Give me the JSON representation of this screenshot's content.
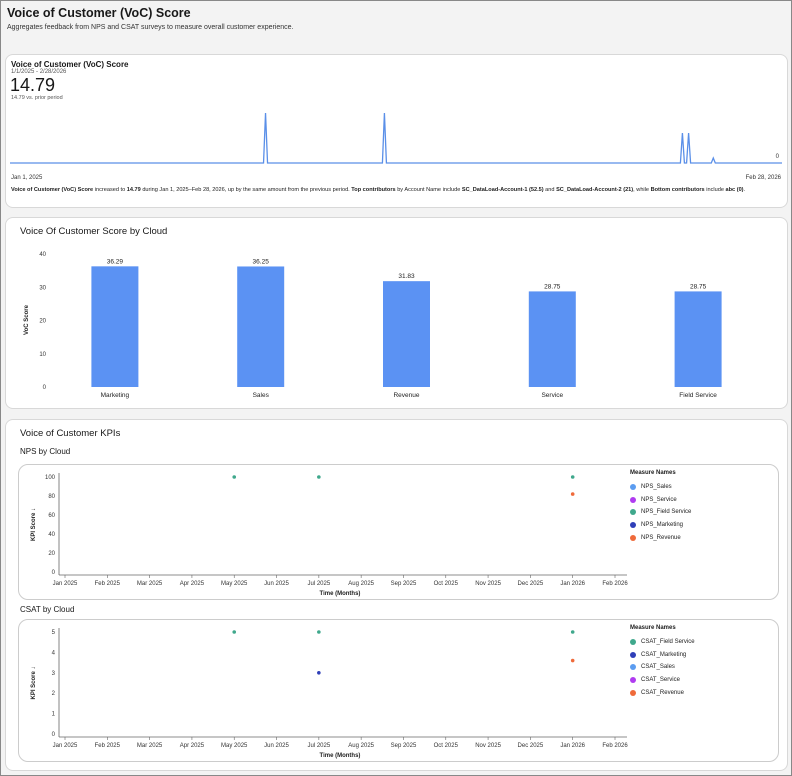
{
  "header": {
    "title": "Voice of Customer (VoC) Score",
    "subtitle": "Aggregates feedback from NPS and CSAT surveys to measure overall customer experience."
  },
  "voc_card": {
    "title": "Voice of Customer (VoC) Score",
    "date_range": "1/1/2025 - 2/28/2026",
    "value": "14.79",
    "prior": "14.79 vs. prior period",
    "x_start": "Jan 1, 2025",
    "x_end": "Feb 28, 2026",
    "end_value": "0",
    "summary": {
      "t1": "Voice of Customer (VoC) Score",
      "t2": " increased to ",
      "t3": "14.79",
      "t4": " during Jan 1, 2025–Feb 28, 2026, up by the same amount from the previous period. ",
      "t5": "Top contributors",
      "t6": " by Account Name include ",
      "t7": "SC_DataLoad-Account-1 (52.5)",
      "t8": " and ",
      "t9": "SC_DataLoad-Account-2 (21)",
      "t10": ", while ",
      "t11": "Bottom contributors",
      "t12": " include ",
      "t13": "abc (0)",
      "t14": "."
    },
    "spark_color": "#5a8fe8",
    "spikes": [
      {
        "position": 0.331,
        "value": 1.0
      },
      {
        "position": 0.485,
        "value": 1.0
      },
      {
        "position": 0.871,
        "value": 0.6
      },
      {
        "position": 0.879,
        "value": 0.6
      },
      {
        "position": 0.911,
        "value": 0.1
      }
    ]
  },
  "chart_data": [
    {
      "type": "bar",
      "title": "Voice Of Customer Score by Cloud",
      "ylabel": "VoC Score",
      "xlabel": "",
      "categories": [
        "Marketing",
        "Sales",
        "Revenue",
        "Service",
        "Field Service"
      ],
      "values": [
        36.29,
        36.25,
        31.83,
        28.75,
        28.75
      ],
      "value_labels": [
        "36.29",
        "36.25",
        "31.83",
        "28.75",
        "28.75"
      ],
      "ylim": [
        0,
        40
      ],
      "yticks": [
        "0",
        "10",
        "20",
        "30",
        "40"
      ],
      "color": "#5b92f3"
    },
    {
      "type": "scatter",
      "title": "NPS by Cloud",
      "ylabel": "KPI Score ↓",
      "xlabel": "Time (Months)",
      "x_categories": [
        "Jan 2025",
        "Feb 2025",
        "Mar 2025",
        "Apr 2025",
        "May 2025",
        "Jun 2025",
        "Jul 2025",
        "Aug 2025",
        "Sep 2025",
        "Oct 2025",
        "Nov 2025",
        "Dec 2025",
        "Jan 2026",
        "Feb 2026"
      ],
      "ylim": [
        0,
        100
      ],
      "yticks": [
        "0",
        "20",
        "40",
        "60",
        "80",
        "100"
      ],
      "legend_title": "Measure Names",
      "series": [
        {
          "name": "NPS_Sales",
          "color": "#5b9cf0",
          "points": []
        },
        {
          "name": "NPS_Service",
          "color": "#b03cf0",
          "points": []
        },
        {
          "name": "NPS_Field Service",
          "color": "#3fa88c",
          "points": [
            [
              "May 2025",
              100
            ],
            [
              "Jul 2025",
              100
            ],
            [
              "Jan 2026",
              100
            ]
          ]
        },
        {
          "name": "NPS_Marketing",
          "color": "#2f3fb8",
          "points": []
        },
        {
          "name": "NPS_Revenue",
          "color": "#ef6a3a",
          "points": [
            [
              "Jan 2026",
              82
            ]
          ]
        }
      ]
    },
    {
      "type": "scatter",
      "title": "CSAT by Cloud",
      "ylabel": "KPI Score ↓",
      "xlabel": "Time (Months)",
      "x_categories": [
        "Jan 2025",
        "Feb 2025",
        "Mar 2025",
        "Apr 2025",
        "May 2025",
        "Jun 2025",
        "Jul 2025",
        "Aug 2025",
        "Sep 2025",
        "Oct 2025",
        "Nov 2025",
        "Dec 2025",
        "Jan 2026",
        "Feb 2026"
      ],
      "ylim": [
        0,
        5
      ],
      "yticks": [
        "0",
        "1",
        "2",
        "3",
        "4",
        "5"
      ],
      "legend_title": "Measure Names",
      "series": [
        {
          "name": "CSAT_Field Service",
          "color": "#3fa88c",
          "points": [
            [
              "May 2025",
              5
            ],
            [
              "Jul 2025",
              5
            ],
            [
              "Jan 2026",
              5
            ]
          ]
        },
        {
          "name": "CSAT_Marketing",
          "color": "#2f3fb8",
          "points": [
            [
              "Jul 2025",
              3
            ]
          ]
        },
        {
          "name": "CSAT_Sales",
          "color": "#5b9cf0",
          "points": []
        },
        {
          "name": "CSAT_Service",
          "color": "#b03cf0",
          "points": []
        },
        {
          "name": "CSAT_Revenue",
          "color": "#ef6a3a",
          "points": [
            [
              "Jan 2026",
              3.6
            ]
          ]
        }
      ]
    }
  ],
  "kpi_section": {
    "title": "Voice of Customer KPIs",
    "nps_title": "NPS by Cloud",
    "csat_title": "CSAT by Cloud"
  }
}
